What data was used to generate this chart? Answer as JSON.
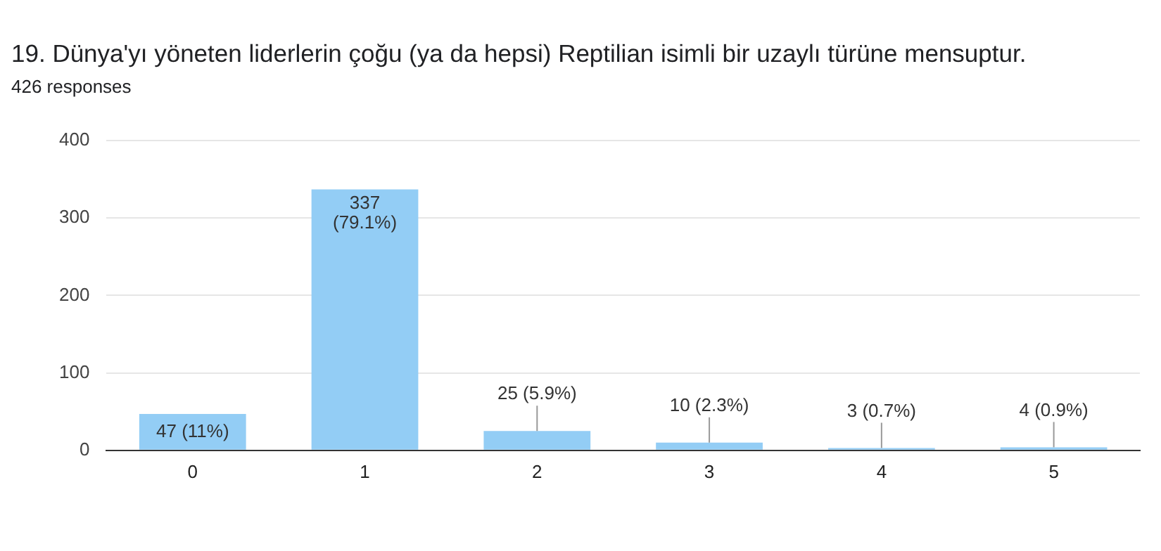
{
  "chart_data": {
    "type": "bar",
    "title": "19. Dünya'yı yöneten liderlerin çoğu (ya da hepsi) Reptilian isimli bir uzaylı türüne mensuptur.",
    "subtitle": "426 responses",
    "categories": [
      "0",
      "1",
      "2",
      "3",
      "4",
      "5"
    ],
    "values": [
      47,
      337,
      25,
      10,
      3,
      4
    ],
    "value_labels": [
      "47 (11%)",
      "337 (79.1%)",
      "25 (5.9%)",
      "10 (2.3%)",
      "3 (0.7%)",
      "4 (0.9%)"
    ],
    "color": "#93cdf5",
    "ylim": [
      0,
      400
    ],
    "yticks": [
      0,
      100,
      200,
      300,
      400
    ],
    "grid": "y",
    "legend": false
  }
}
